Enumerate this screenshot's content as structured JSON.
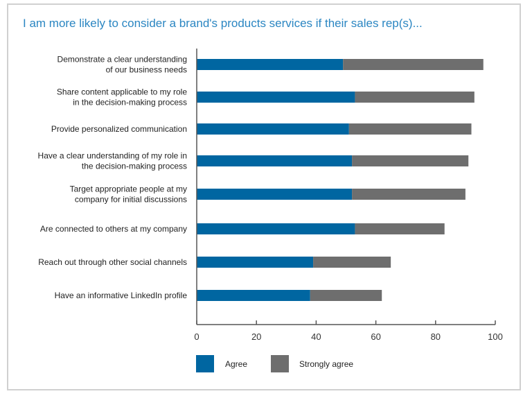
{
  "chart_data": {
    "type": "bar",
    "orientation": "horizontal",
    "stacked": true,
    "title": "I am more likely to consider a brand's products services if their sales rep(s)...",
    "categories": [
      [
        "Demonstrate a clear understanding",
        "of our business needs"
      ],
      [
        "Share content applicable to my role",
        "in the decision-making process"
      ],
      [
        "Provide personalized communication"
      ],
      [
        "Have a clear understanding of my role in",
        "the decision-making process"
      ],
      [
        "Target appropriate people at my",
        "company for initial discussions"
      ],
      [
        "Are connected to others at my company"
      ],
      [
        "Reach out through other social channels"
      ],
      [
        "Have an informative LinkedIn profile"
      ]
    ],
    "series": [
      {
        "name": "Agree",
        "color": "#0066a1",
        "values": [
          49,
          53,
          51,
          52,
          52,
          53,
          39,
          38
        ]
      },
      {
        "name": "Strongly agree",
        "color": "#6e6e6e",
        "values": [
          47,
          40,
          41,
          39,
          38,
          30,
          26,
          24
        ]
      }
    ],
    "xlim": [
      0,
      100
    ],
    "xticks": [
      "0",
      "20",
      "40",
      "60",
      "80",
      "100"
    ],
    "grid": false,
    "legend": "bottom"
  }
}
